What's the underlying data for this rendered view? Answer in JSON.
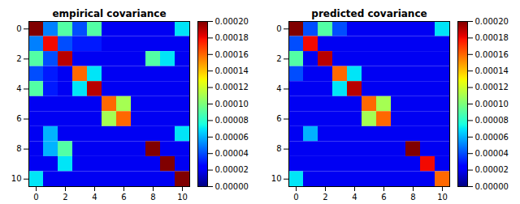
{
  "chart_data": [
    {
      "type": "heatmap",
      "title": "empirical covariance",
      "color": "jet",
      "values": [
        [
          0.0002,
          5e-05,
          9e-05,
          4e-05,
          9e-05,
          2e-05,
          2e-05,
          2e-05,
          2e-05,
          2e-05,
          7e-05
        ],
        [
          5e-05,
          0.00018,
          4e-05,
          3e-05,
          3e-05,
          2e-05,
          2e-05,
          2e-05,
          2e-05,
          2e-05,
          2e-05
        ],
        [
          9e-05,
          4e-05,
          0.00019,
          2e-05,
          2e-05,
          2e-05,
          2e-05,
          2e-05,
          9e-05,
          7e-05,
          2e-05
        ],
        [
          4e-05,
          3e-05,
          2e-05,
          0.00016,
          7e-05,
          2e-05,
          2e-05,
          2e-05,
          2e-05,
          2e-05,
          2e-05
        ],
        [
          9e-05,
          3e-05,
          2e-05,
          7e-05,
          0.00019,
          2e-05,
          2e-05,
          2e-05,
          2e-05,
          2e-05,
          2e-05
        ],
        [
          2e-05,
          2e-05,
          2e-05,
          2e-05,
          2e-05,
          0.00016,
          0.00011,
          2e-05,
          2e-05,
          2e-05,
          2e-05
        ],
        [
          2e-05,
          2e-05,
          2e-05,
          2e-05,
          2e-05,
          0.00011,
          0.00016,
          2e-05,
          2e-05,
          2e-05,
          2e-05
        ],
        [
          2e-05,
          6e-05,
          2e-05,
          2e-05,
          2e-05,
          2e-05,
          2e-05,
          2e-05,
          2e-05,
          2e-05,
          7e-05
        ],
        [
          2e-05,
          6e-05,
          9e-05,
          2e-05,
          2e-05,
          2e-05,
          2e-05,
          2e-05,
          0.0002,
          2e-05,
          2e-05
        ],
        [
          2e-05,
          2e-05,
          7e-05,
          2e-05,
          2e-05,
          2e-05,
          2e-05,
          2e-05,
          2e-05,
          0.0002,
          2e-05
        ],
        [
          7e-05,
          2e-05,
          2e-05,
          2e-05,
          2e-05,
          2e-05,
          2e-05,
          2e-05,
          2e-05,
          2e-05,
          0.0002
        ]
      ],
      "xlim": [
        -0.5,
        10.5
      ],
      "ylim": [
        10.5,
        -0.5
      ],
      "xticks": [
        0,
        2,
        4,
        6,
        8,
        10
      ],
      "yticks": [
        0,
        2,
        4,
        6,
        8,
        10
      ],
      "colorbar_lim": [
        0.0,
        0.0002
      ],
      "colorbar_ticks": [
        {
          "value": 0.0,
          "label": "0.00000"
        },
        {
          "value": 2e-05,
          "label": "0.00002"
        },
        {
          "value": 4e-05,
          "label": "0.00004"
        },
        {
          "value": 6e-05,
          "label": "0.00006"
        },
        {
          "value": 8e-05,
          "label": "0.00008"
        },
        {
          "value": 0.0001,
          "label": "0.00010"
        },
        {
          "value": 0.00012,
          "label": "0.00012"
        },
        {
          "value": 0.00014,
          "label": "0.00014"
        },
        {
          "value": 0.00016,
          "label": "0.00016"
        },
        {
          "value": 0.00018,
          "label": "0.00018"
        },
        {
          "value": 0.0002,
          "label": "0.00020"
        }
      ]
    },
    {
      "type": "heatmap",
      "title": "predicted covariance",
      "color": "jet",
      "values": [
        [
          0.0002,
          4e-05,
          9e-05,
          4e-05,
          2e-05,
          2e-05,
          2e-05,
          2e-05,
          2e-05,
          2e-05,
          7e-05
        ],
        [
          4e-05,
          0.00018,
          2e-05,
          2e-05,
          2e-05,
          2e-05,
          2e-05,
          2e-05,
          2e-05,
          2e-05,
          2e-05
        ],
        [
          9e-05,
          2e-05,
          0.00019,
          2e-05,
          2e-05,
          2e-05,
          2e-05,
          2e-05,
          2e-05,
          2e-05,
          2e-05
        ],
        [
          4e-05,
          2e-05,
          2e-05,
          0.00016,
          7e-05,
          2e-05,
          2e-05,
          2e-05,
          2e-05,
          2e-05,
          2e-05
        ],
        [
          2e-05,
          2e-05,
          2e-05,
          7e-05,
          0.00019,
          2e-05,
          2e-05,
          2e-05,
          2e-05,
          2e-05,
          2e-05
        ],
        [
          2e-05,
          2e-05,
          2e-05,
          2e-05,
          2e-05,
          0.00016,
          0.00011,
          2e-05,
          2e-05,
          2e-05,
          2e-05
        ],
        [
          2e-05,
          2e-05,
          2e-05,
          2e-05,
          2e-05,
          0.00011,
          0.00016,
          2e-05,
          2e-05,
          2e-05,
          2e-05
        ],
        [
          2e-05,
          6e-05,
          2e-05,
          2e-05,
          2e-05,
          2e-05,
          2e-05,
          2e-05,
          2e-05,
          2e-05,
          2e-05
        ],
        [
          2e-05,
          2e-05,
          2e-05,
          2e-05,
          2e-05,
          2e-05,
          2e-05,
          2e-05,
          0.0002,
          2e-05,
          2e-05
        ],
        [
          2e-05,
          2e-05,
          2e-05,
          2e-05,
          2e-05,
          2e-05,
          2e-05,
          2e-05,
          2e-05,
          0.00018,
          2e-05
        ],
        [
          7e-05,
          2e-05,
          2e-05,
          2e-05,
          2e-05,
          2e-05,
          2e-05,
          2e-05,
          2e-05,
          2e-05,
          0.00016
        ]
      ],
      "xlim": [
        -0.5,
        10.5
      ],
      "ylim": [
        10.5,
        -0.5
      ],
      "xticks": [
        0,
        2,
        4,
        6,
        8,
        10
      ],
      "yticks": [
        0,
        2,
        4,
        6,
        8,
        10
      ],
      "colorbar_lim": [
        0.0,
        0.0002
      ],
      "colorbar_ticks": [
        {
          "value": 0.0,
          "label": "0.00000"
        },
        {
          "value": 2e-05,
          "label": "0.00002"
        },
        {
          "value": 4e-05,
          "label": "0.00004"
        },
        {
          "value": 6e-05,
          "label": "0.00006"
        },
        {
          "value": 8e-05,
          "label": "0.00008"
        },
        {
          "value": 0.0001,
          "label": "0.00010"
        },
        {
          "value": 0.00012,
          "label": "0.00012"
        },
        {
          "value": 0.00014,
          "label": "0.00014"
        },
        {
          "value": 0.00016,
          "label": "0.00016"
        },
        {
          "value": 0.00018,
          "label": "0.00018"
        },
        {
          "value": 0.0002,
          "label": "0.00020"
        }
      ]
    }
  ]
}
